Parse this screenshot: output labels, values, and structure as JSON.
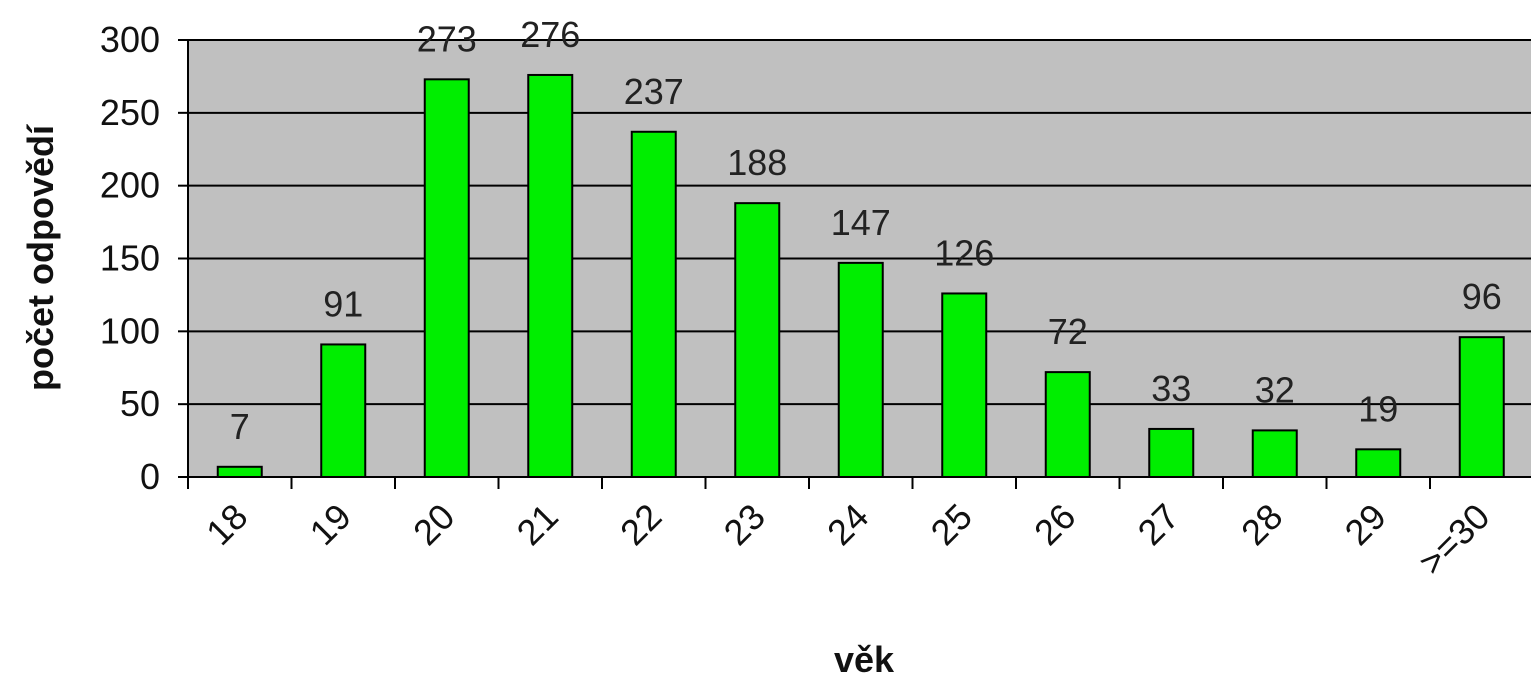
{
  "chart_data": {
    "type": "bar",
    "title": "",
    "xlabel": "věk",
    "ylabel": "počet odpovědí",
    "categories": [
      "18",
      "19",
      "20",
      "21",
      "22",
      "23",
      "24",
      "25",
      "26",
      "27",
      "28",
      "29",
      ">=30"
    ],
    "values": [
      7,
      91,
      273,
      276,
      237,
      188,
      147,
      126,
      72,
      33,
      32,
      19,
      96
    ],
    "data_labels": [
      "7",
      "91",
      "273",
      "276",
      "237",
      "188",
      "147",
      "126",
      "72",
      "33",
      "32",
      "19",
      "96"
    ],
    "ylim": [
      0,
      300
    ],
    "yticks": [
      "0",
      "50",
      "100",
      "150",
      "200",
      "250",
      "300"
    ],
    "grid": true,
    "legend": "none",
    "colors": {
      "bar_fill": "#00ee00",
      "bar_stroke": "#000000",
      "plot_background": "#c0c0c0",
      "gridline": "#000000"
    }
  }
}
